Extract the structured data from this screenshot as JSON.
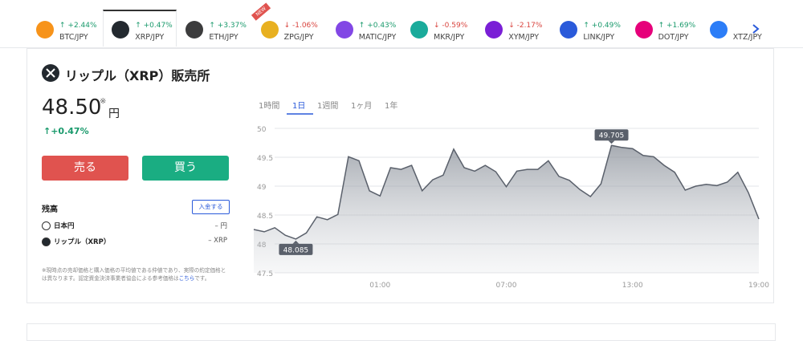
{
  "tabs": [
    {
      "pair": "BTC/JPY",
      "change": "+2.44%",
      "icon_color": "#f7931a"
    },
    {
      "pair": "XRP/JPY",
      "change": "+0.47%",
      "icon_color": "#23292f"
    },
    {
      "pair": "ETH/JPY",
      "change": "+3.37%",
      "icon_color": "#3c3c3d"
    },
    {
      "pair": "ZPG/JPY",
      "change": "-1.06%",
      "icon_color": "#e8b020",
      "badge": "NEW"
    },
    {
      "pair": "MATIC/JPY",
      "change": "+0.43%",
      "icon_color": "#8247e5"
    },
    {
      "pair": "MKR/JPY",
      "change": "-0.59%",
      "icon_color": "#1aab9b"
    },
    {
      "pair": "XYM/JPY",
      "change": "-2.17%",
      "icon_color": "#7a1fd6"
    },
    {
      "pair": "LINK/JPY",
      "change": "+0.49%",
      "icon_color": "#2a5ada"
    },
    {
      "pair": "DOT/JPY",
      "change": "+1.69%",
      "icon_color": "#e6007a"
    },
    {
      "pair": "XTZ/JPY",
      "icon_color": "#2c7df7"
    }
  ],
  "active_tab": 1,
  "panel": {
    "title": "リップル（XRP）販売所",
    "price": "48.50",
    "price_note": "※",
    "price_unit": "円",
    "change": "+0.47%",
    "sell": "売る",
    "buy": "買う",
    "balance": {
      "title": "残高",
      "deposit": "入金する",
      "rows": [
        [
          "日本円",
          "– 円"
        ],
        [
          "リップル（XRP）",
          "– XRP"
        ]
      ]
    },
    "note": {
      "text_before": "※現時点の売却価格と購入価格の平均値である仲値であり、実際の約定価格とは異なります。認定資金決済事業者協会による参考価格は",
      "link": "こちら",
      "text_after": "です。"
    }
  },
  "periods": [
    "1時間",
    "1日",
    "1週間",
    "1ヶ月",
    "1年"
  ],
  "active_period": 1,
  "chart_data": {
    "type": "area",
    "categories": [
      null,
      null,
      null,
      null,
      null,
      null,
      null,
      null,
      null,
      null,
      null,
      null,
      "01:00",
      null,
      null,
      null,
      null,
      null,
      null,
      null,
      null,
      null,
      null,
      null,
      "07:00",
      null,
      null,
      null,
      null,
      null,
      null,
      null,
      null,
      null,
      null,
      null,
      "13:00",
      null,
      null,
      null,
      null,
      null,
      null,
      null,
      null,
      null,
      null,
      null,
      "19:00"
    ],
    "series": [
      {
        "name": "XRP/JPY",
        "color": "#5a606b",
        "values": [
          48.25,
          48.21,
          48.28,
          48.15,
          48.085,
          48.19,
          48.47,
          48.42,
          48.51,
          49.51,
          49.44,
          48.92,
          48.83,
          49.32,
          49.29,
          49.36,
          48.92,
          49.11,
          49.19,
          49.64,
          49.32,
          49.26,
          49.36,
          49.25,
          48.99,
          49.26,
          49.29,
          49.29,
          49.44,
          49.17,
          49.1,
          48.94,
          48.82,
          49.04,
          49.705,
          49.67,
          49.65,
          49.53,
          49.51,
          49.36,
          49.24,
          48.93,
          49.0,
          49.03,
          49.01,
          49.07,
          49.24,
          48.89,
          48.43
        ]
      }
    ],
    "ylim": [
      47.5,
      50
    ],
    "yticks": [
      47.5,
      48,
      48.5,
      49,
      49.5,
      50
    ],
    "grid": true
  }
}
